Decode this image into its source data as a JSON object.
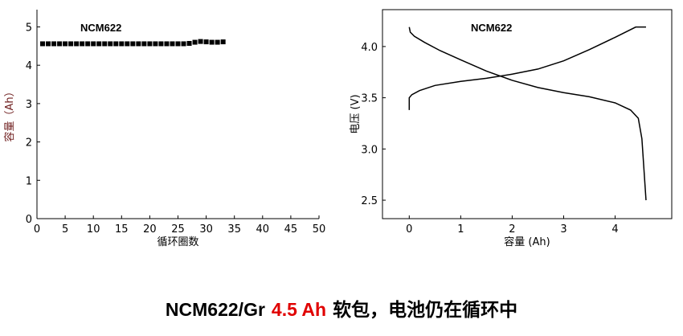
{
  "chart_data": [
    {
      "type": "scatter",
      "annotation": "NCM622",
      "xlabel": "循环圈数",
      "ylabel": "容量（Ah）",
      "x": [
        1,
        2,
        3,
        4,
        5,
        6,
        7,
        8,
        9,
        10,
        11,
        12,
        13,
        14,
        15,
        16,
        17,
        18,
        19,
        20,
        21,
        22,
        23,
        24,
        25,
        26,
        27,
        28,
        29,
        30,
        31,
        32,
        33
      ],
      "values": [
        4.56,
        4.56,
        4.56,
        4.56,
        4.56,
        4.56,
        4.56,
        4.56,
        4.56,
        4.56,
        4.56,
        4.56,
        4.56,
        4.56,
        4.56,
        4.56,
        4.56,
        4.56,
        4.56,
        4.56,
        4.56,
        4.56,
        4.56,
        4.56,
        4.56,
        4.56,
        4.57,
        4.6,
        4.62,
        4.61,
        4.6,
        4.6,
        4.61
      ],
      "color": "#000000",
      "xlim": [
        0,
        50
      ],
      "xticks": [
        0,
        5,
        10,
        15,
        20,
        25,
        30,
        35,
        40,
        45,
        50
      ],
      "ylim": [
        0,
        5.45
      ],
      "yticks": [
        0,
        1,
        2,
        3,
        4,
        5
      ],
      "box": false
    },
    {
      "type": "line",
      "annotation": "NCM622",
      "xlabel": "容量 (Ah)",
      "ylabel": "电压 (V)",
      "series": [
        {
          "color": "#000000",
          "x": [
            0,
            0,
            0.05,
            0.2,
            0.5,
            1,
            1.5,
            2,
            2.5,
            3,
            3.5,
            4,
            4.4,
            4.6
          ],
          "values": [
            3.38,
            3.5,
            3.53,
            3.57,
            3.62,
            3.66,
            3.69,
            3.73,
            3.78,
            3.86,
            3.97,
            4.09,
            4.19,
            4.19
          ]
        },
        {
          "color": "#000000",
          "x": [
            0,
            0.02,
            0.1,
            0.3,
            0.6,
            1,
            1.5,
            2,
            2.5,
            3,
            3.5,
            4,
            4.3,
            4.45,
            4.52,
            4.56,
            4.6
          ],
          "values": [
            4.19,
            4.14,
            4.1,
            4.04,
            3.96,
            3.87,
            3.76,
            3.67,
            3.6,
            3.55,
            3.51,
            3.45,
            3.38,
            3.3,
            3.1,
            2.8,
            2.5
          ]
        }
      ],
      "xlim": [
        -0.52,
        5.1
      ],
      "xticks": [
        0,
        1,
        2,
        3,
        4
      ],
      "ylim": [
        2.32,
        4.36
      ],
      "yticks": [
        {
          "value": 2.5,
          "label": "2.5"
        },
        {
          "value": 3,
          "label": "3.0"
        },
        {
          "value": 3.5,
          "label": "3.5"
        },
        {
          "value": 4,
          "label": "4.0"
        }
      ],
      "box": true
    }
  ],
  "caption": [
    "NCM622/Gr",
    "4.5 Ah",
    "软包，电池仍在循环中"
  ]
}
